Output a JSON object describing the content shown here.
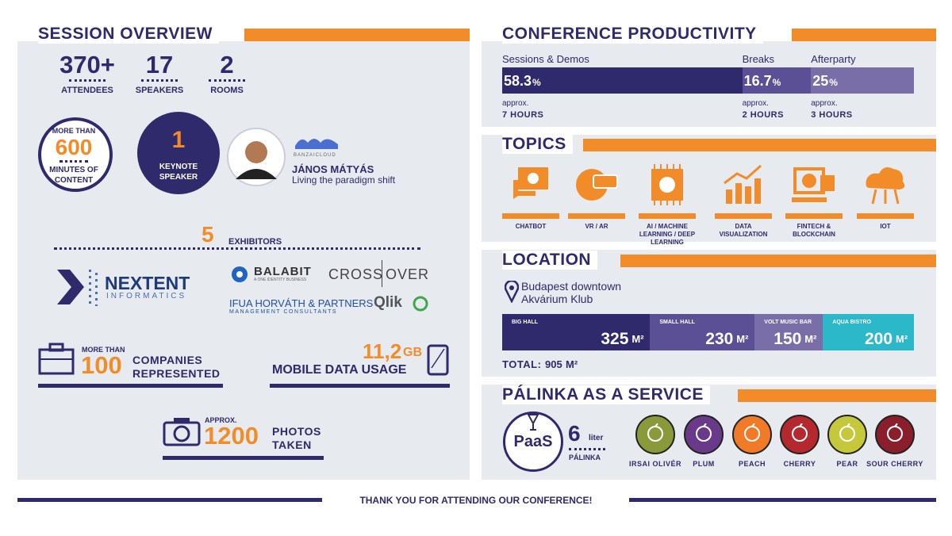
{
  "session_overview": {
    "title": "SESSION OVERVIEW",
    "stats": [
      {
        "value": "370+",
        "label": "ATTENDEES"
      },
      {
        "value": "17",
        "label": "SPEAKERS"
      },
      {
        "value": "2",
        "label": "ROOMS"
      }
    ],
    "content": {
      "prefix": "MORE THAN",
      "value": "600",
      "label": "MINUTES OF CONTENT"
    },
    "keynote": {
      "value": "1",
      "label": "KEYNOTE SPEAKER"
    },
    "speaker": {
      "company": "BANZAICLOUD",
      "name": "JÁNOS MÁTYÁS",
      "talk": "Living the paradigm shift"
    },
    "exhibitors": {
      "value": "5",
      "label": "EXHIBITORS"
    },
    "logos": {
      "nextent": "NEXTENT",
      "nextent_sub": "INFORMATICS",
      "balabit": "BALABIT",
      "balabit_sub": "A ONE IDENTITY BUSINESS",
      "crossover_a": "CROSS",
      "crossover_b": "OVER",
      "ifua": "IFUA HORVÁTH & PARTNERS",
      "ifua_sub": "MANAGEMENT CONSULTANTS",
      "qlik": "Qlik"
    },
    "companies": {
      "prefix": "MORE THAN",
      "value": "100",
      "label": "COMPANIES REPRESENTED"
    },
    "mobile": {
      "value": "11,2",
      "unit": "GB",
      "label": "MOBILE DATA USAGE"
    },
    "photos": {
      "prefix": "Approx.",
      "value": "1200",
      "label": "PHOTOS TAKEN"
    }
  },
  "productivity": {
    "title": "CONFERENCE PRODUCTIVITY",
    "segments": [
      {
        "name": "Sessions & Demos",
        "value": 58.3,
        "unit": "%",
        "approx": "approx.",
        "duration": "7 HOURS",
        "color": "#2e2a6b"
      },
      {
        "name": "Breaks",
        "value": 16.7,
        "unit": "%",
        "approx": "approx.",
        "duration": "2 HOURS",
        "color": "#5b4f95"
      },
      {
        "name": "Afterparty",
        "value": 25,
        "unit": "%",
        "approx": "approx.",
        "duration": "3 HOURS",
        "color": "#7a6ea8"
      }
    ]
  },
  "topics": {
    "title": "TOPICS",
    "items": [
      "CHATBOT",
      "VR / AR",
      "AI / MACHINE LEARNING / DEEP LEARNING",
      "DATA VISUALIZATION",
      "FINTECH & BLOCKCHAIN",
      "IOT"
    ]
  },
  "location": {
    "title": "LOCATION",
    "address": [
      "Budapest downtown",
      "Akvárium Klub"
    ],
    "halls": [
      {
        "name": "BIG HALL",
        "area": 325,
        "unit": "M²",
        "color": "#2e2a6b"
      },
      {
        "name": "SMALL HALL",
        "area": 230,
        "unit": "M²",
        "color": "#5b4f95"
      },
      {
        "name": "VOLT MUSIC BAR",
        "area": 150,
        "unit": "M²",
        "color": "#7a6ea8"
      },
      {
        "name": "AQUA BISTRO",
        "area": 200,
        "unit": "M²",
        "color": "#2bb8c9"
      }
    ],
    "total_label": "TOTAL:",
    "total": 905,
    "total_unit": "M²"
  },
  "palinka": {
    "title": "PÁLINKA AS A SERVICE",
    "badge": "PaaS",
    "amount": "6",
    "amount_unit": "liter",
    "amount_label": "PÁLINKA",
    "flavors": [
      {
        "name": "IRSAI OLIVÉR",
        "color": "#8a9a3a"
      },
      {
        "name": "PLUM",
        "color": "#6a3a8a"
      },
      {
        "name": "PEACH",
        "color": "#f07a28"
      },
      {
        "name": "CHERRY",
        "color": "#b5282e"
      },
      {
        "name": "PEAR",
        "color": "#c5c83a"
      },
      {
        "name": "SOUR CHERRY",
        "color": "#8a1e2a"
      }
    ]
  },
  "footer": "THANK YOU FOR ATTENDING OUR CONFERENCE!"
}
